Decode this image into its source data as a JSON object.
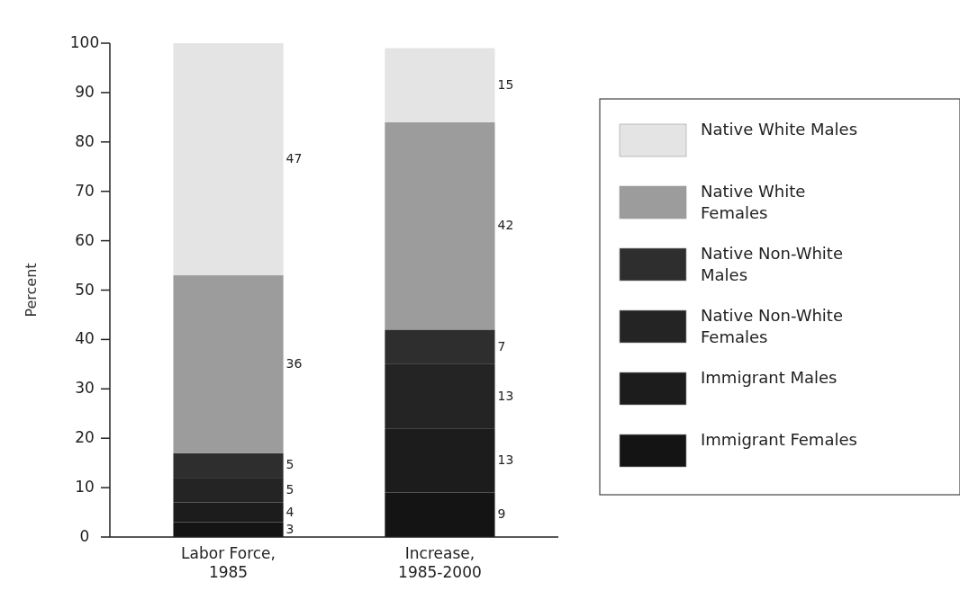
{
  "chart_data": {
    "type": "bar",
    "stacked": true,
    "ylabel": "Percent",
    "categories": [
      "Labor Force, 1985",
      "Increase, 1985-2000"
    ],
    "series": [
      {
        "name": "Immigrant Females",
        "color": "#141414",
        "values": [
          3,
          9
        ]
      },
      {
        "name": "Immigrant Males",
        "color": "#1c1c1c",
        "values": [
          4,
          13
        ]
      },
      {
        "name": "Native Non-White Females",
        "color": "#242424",
        "values": [
          5,
          13
        ]
      },
      {
        "name": "Native Non-White Males",
        "color": "#2e2e2e",
        "values": [
          5,
          7
        ]
      },
      {
        "name": "Native White Females",
        "color": "#9c9c9c",
        "values": [
          36,
          42
        ]
      },
      {
        "name": "Native White Males",
        "color": "#e4e4e4",
        "values": [
          47,
          15
        ]
      }
    ],
    "ylim": [
      0,
      100
    ],
    "yticks": [
      0,
      10,
      20,
      30,
      40,
      50,
      60,
      70,
      80,
      90,
      100
    ],
    "data_labels": true,
    "legend": "right",
    "grid": false
  }
}
